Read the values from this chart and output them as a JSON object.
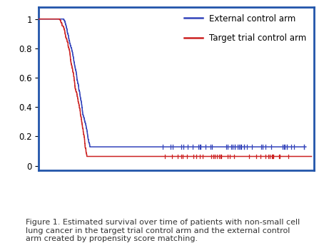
{
  "caption": "Figure 1. Estimated survival over time of patients with non-small cell\nlung cancer in the target trial control arm and the external control\narm created by propensity score matching.",
  "ylim": [
    -0.03,
    1.08
  ],
  "xlim": [
    0,
    1
  ],
  "yticks": [
    0,
    0.2,
    0.4,
    0.6,
    0.8,
    1
  ],
  "legend_labels": [
    "External control arm",
    "Target trial control arm"
  ],
  "line_colors": [
    "#3344bb",
    "#cc2222"
  ],
  "border_color": "#2255aa",
  "background_color": "#ffffff",
  "text_color": "#333333",
  "caption_fontsize": 8.0,
  "legend_fontsize": 8.5,
  "blue_seed": 42,
  "red_seed": 99
}
